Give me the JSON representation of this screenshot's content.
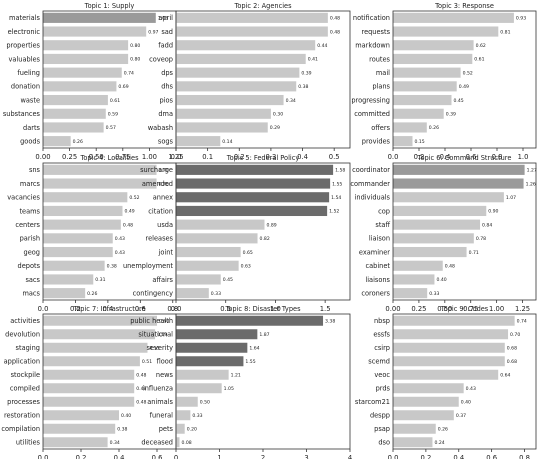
{
  "figure": {
    "background": "#ffffff"
  },
  "style": {
    "bar_light": "#c8c8c8",
    "bar_mid": "#9a9a9a",
    "bar_dark": "#6b6b6b",
    "axis_color": "#333333"
  },
  "chart_data": [
    {
      "type": "bar",
      "orientation": "horizontal",
      "title": "Topic 1: Supply",
      "categories": [
        "materials",
        "electronic",
        "properties",
        "valuables",
        "fueling",
        "donation",
        "waste",
        "substances",
        "darts",
        "goods"
      ],
      "values": [
        1.06,
        0.97,
        0.8,
        0.8,
        0.74,
        0.69,
        0.61,
        0.59,
        0.57,
        0.26
      ],
      "data_labels": [
        "1.06",
        "0.97",
        "0.80",
        "0.80",
        "0.74",
        "0.69",
        "0.61",
        "0.59",
        "0.57",
        "0.26"
      ],
      "xlim": [
        0,
        1.25
      ],
      "xticks": [
        0,
        0.25,
        0.5,
        0.75,
        1.0,
        1.25
      ],
      "xtick_labels": [
        "0.00",
        "0.25",
        "0.50",
        "0.75",
        "1.00",
        "1.25"
      ],
      "bar_colors": [
        "#9a9a9a",
        "#c8c8c8",
        "#c8c8c8",
        "#c8c8c8",
        "#c8c8c8",
        "#c8c8c8",
        "#c8c8c8",
        "#c8c8c8",
        "#c8c8c8",
        "#c8c8c8"
      ]
    },
    {
      "type": "bar",
      "orientation": "horizontal",
      "title": "Topic 2: Agencies",
      "categories": [
        "april",
        "sad",
        "fadd",
        "coveop",
        "dps",
        "dhs",
        "pios",
        "dma",
        "wabash",
        "sogs"
      ],
      "values": [
        0.48,
        0.48,
        0.44,
        0.41,
        0.39,
        0.38,
        0.34,
        0.3,
        0.29,
        0.14
      ],
      "data_labels": [
        "0.48",
        "0.48",
        "0.44",
        "0.41",
        "0.39",
        "0.38",
        "0.34",
        "0.30",
        "0.29",
        "0.14"
      ],
      "xlim": [
        0,
        0.55
      ],
      "xticks": [
        0,
        0.1,
        0.2,
        0.3,
        0.4,
        0.5
      ],
      "xtick_labels": [
        "0.0",
        "0.1",
        "0.2",
        "0.3",
        "0.4",
        "0.5"
      ],
      "bar_colors": [
        "#c8c8c8",
        "#c8c8c8",
        "#c8c8c8",
        "#c8c8c8",
        "#c8c8c8",
        "#c8c8c8",
        "#c8c8c8",
        "#c8c8c8",
        "#c8c8c8",
        "#c8c8c8"
      ]
    },
    {
      "type": "bar",
      "orientation": "horizontal",
      "title": "Topic 3: Response",
      "categories": [
        "notification",
        "requests",
        "markdown",
        "routes",
        "mail",
        "plans",
        "progressing",
        "committed",
        "offers",
        "provides"
      ],
      "values": [
        0.93,
        0.81,
        0.62,
        0.61,
        0.52,
        0.49,
        0.45,
        0.39,
        0.26,
        0.15
      ],
      "data_labels": [
        "0.93",
        "0.81",
        "0.62",
        "0.61",
        "0.52",
        "0.49",
        "0.45",
        "0.39",
        "0.26",
        "0.15"
      ],
      "xlim": [
        0,
        1.1
      ],
      "xticks": [
        0,
        0.2,
        0.4,
        0.6,
        0.8,
        1.0
      ],
      "xtick_labels": [
        "0.0",
        "0.2",
        "0.4",
        "0.6",
        "0.8",
        "1.0"
      ],
      "bar_colors": [
        "#c8c8c8",
        "#c8c8c8",
        "#c8c8c8",
        "#c8c8c8",
        "#c8c8c8",
        "#c8c8c8",
        "#c8c8c8",
        "#c8c8c8",
        "#c8c8c8",
        "#c8c8c8"
      ]
    },
    {
      "type": "bar",
      "orientation": "horizontal",
      "title": "Topic 4: Localities",
      "categories": [
        "sns",
        "marcs",
        "vacancies",
        "teams",
        "centers",
        "parish",
        "geog",
        "depots",
        "sacs",
        "macs"
      ],
      "values": [
        0.7,
        0.7,
        0.52,
        0.49,
        0.48,
        0.43,
        0.43,
        0.38,
        0.31,
        0.26
      ],
      "data_labels": [
        "0.70",
        "0.70",
        "0.52",
        "0.49",
        "0.48",
        "0.43",
        "0.43",
        "0.38",
        "0.31",
        "0.26"
      ],
      "xlim": [
        0,
        0.82
      ],
      "xticks": [
        0,
        0.2,
        0.4,
        0.6,
        0.8
      ],
      "xtick_labels": [
        "0.0",
        "0.2",
        "0.4",
        "0.6",
        "0.8"
      ],
      "bar_colors": [
        "#c8c8c8",
        "#c8c8c8",
        "#c8c8c8",
        "#c8c8c8",
        "#c8c8c8",
        "#c8c8c8",
        "#c8c8c8",
        "#c8c8c8",
        "#c8c8c8",
        "#c8c8c8"
      ]
    },
    {
      "type": "bar",
      "orientation": "horizontal",
      "title": "Topic 5: Federal Policy",
      "categories": [
        "surcharge",
        "amended",
        "annex",
        "citation",
        "usda",
        "releases",
        "joint",
        "unemployment",
        "affairs",
        "contingency"
      ],
      "values": [
        1.58,
        1.55,
        1.54,
        1.52,
        0.89,
        0.82,
        0.65,
        0.63,
        0.45,
        0.33
      ],
      "data_labels": [
        "1.58",
        "1.55",
        "1.54",
        "1.52",
        "0.89",
        "0.82",
        "0.65",
        "0.63",
        "0.45",
        "0.33"
      ],
      "xlim": [
        0,
        1.75
      ],
      "xticks": [
        0,
        0.5,
        1.0,
        1.5
      ],
      "xtick_labels": [
        "0.0",
        "0.5",
        "1.0",
        "1.5"
      ],
      "bar_colors": [
        "#6b6b6b",
        "#6b6b6b",
        "#6b6b6b",
        "#6b6b6b",
        "#c8c8c8",
        "#c8c8c8",
        "#c8c8c8",
        "#c8c8c8",
        "#c8c8c8",
        "#c8c8c8"
      ]
    },
    {
      "type": "bar",
      "orientation": "horizontal",
      "title": "Topic 6: Command Structure",
      "categories": [
        "coordinator",
        "commander",
        "individuals",
        "cop",
        "staff",
        "liaison",
        "examiner",
        "cabinet",
        "liaisons",
        "coroners"
      ],
      "values": [
        1.27,
        1.26,
        1.07,
        0.9,
        0.84,
        0.78,
        0.71,
        0.48,
        0.4,
        0.33
      ],
      "data_labels": [
        "1.27",
        "1.26",
        "1.07",
        "0.90",
        "0.84",
        "0.78",
        "0.71",
        "0.48",
        "0.40",
        "0.33"
      ],
      "xlim": [
        0,
        1.38
      ],
      "xticks": [
        0,
        0.25,
        0.5,
        0.75,
        1.0,
        1.25
      ],
      "xtick_labels": [
        "0.00",
        "0.25",
        "0.50",
        "0.75",
        "1.00",
        "1.25"
      ],
      "bar_colors": [
        "#9a9a9a",
        "#9a9a9a",
        "#c8c8c8",
        "#c8c8c8",
        "#c8c8c8",
        "#c8c8c8",
        "#c8c8c8",
        "#c8c8c8",
        "#c8c8c8",
        "#c8c8c8"
      ]
    },
    {
      "type": "bar",
      "orientation": "horizontal",
      "title": "Topic 7: Infrastructure",
      "categories": [
        "activities",
        "devolution",
        "staging",
        "application",
        "stockpile",
        "compiled",
        "processes",
        "restoration",
        "compilation",
        "utilities"
      ],
      "values": [
        0.6,
        0.59,
        0.55,
        0.51,
        0.48,
        0.48,
        0.48,
        0.4,
        0.38,
        0.34
      ],
      "data_labels": [
        "0.60",
        "0.59",
        "0.55",
        "0.51",
        "0.48",
        "0.48",
        "0.48",
        "0.40",
        "0.38",
        "0.34"
      ],
      "xlim": [
        0,
        0.7
      ],
      "xticks": [
        0,
        0.2,
        0.4,
        0.6
      ],
      "xtick_labels": [
        "0.0",
        "0.2",
        "0.4",
        "0.6"
      ],
      "bar_colors": [
        "#c8c8c8",
        "#c8c8c8",
        "#c8c8c8",
        "#c8c8c8",
        "#c8c8c8",
        "#c8c8c8",
        "#c8c8c8",
        "#c8c8c8",
        "#c8c8c8",
        "#c8c8c8"
      ]
    },
    {
      "type": "bar",
      "orientation": "horizontal",
      "title": "Topic 8: Disaster Types",
      "categories": [
        "public health",
        "situational",
        "severity",
        "flood",
        "news",
        "influenza",
        "animals",
        "funeral",
        "pets",
        "deceased"
      ],
      "values": [
        3.38,
        1.87,
        1.64,
        1.55,
        1.21,
        1.05,
        0.5,
        0.33,
        0.2,
        0.08
      ],
      "data_labels": [
        "3.38",
        "1.87",
        "1.64",
        "1.55",
        "1.21",
        "1.05",
        "0.50",
        "0.33",
        "0.20",
        "0.08"
      ],
      "xlim": [
        0,
        4
      ],
      "xticks": [
        0,
        1,
        2,
        3,
        4
      ],
      "xtick_labels": [
        "0",
        "1",
        "2",
        "3",
        "4"
      ],
      "bar_colors": [
        "#6b6b6b",
        "#6b6b6b",
        "#6b6b6b",
        "#6b6b6b",
        "#c8c8c8",
        "#c8c8c8",
        "#c8c8c8",
        "#c8c8c8",
        "#c8c8c8",
        "#c8c8c8"
      ]
    },
    {
      "type": "bar",
      "orientation": "horizontal",
      "title": "Topic 9: Codes",
      "categories": [
        "nbsp",
        "essfs",
        "csirp",
        "scemd",
        "veoc",
        "prds",
        "starcom21",
        "despp",
        "psap",
        "dso"
      ],
      "values": [
        0.74,
        0.7,
        0.68,
        0.68,
        0.64,
        0.43,
        0.4,
        0.37,
        0.26,
        0.24
      ],
      "data_labels": [
        "0.74",
        "0.70",
        "0.68",
        "0.68",
        "0.64",
        "0.43",
        "0.40",
        "0.37",
        "0.26",
        "0.24"
      ],
      "xlim": [
        0,
        0.87
      ],
      "xticks": [
        0,
        0.2,
        0.4,
        0.6,
        0.8
      ],
      "xtick_labels": [
        "0.0",
        "0.2",
        "0.4",
        "0.6",
        "0.8"
      ],
      "bar_colors": [
        "#c8c8c8",
        "#c8c8c8",
        "#c8c8c8",
        "#c8c8c8",
        "#c8c8c8",
        "#c8c8c8",
        "#c8c8c8",
        "#c8c8c8",
        "#c8c8c8",
        "#c8c8c8"
      ]
    }
  ]
}
